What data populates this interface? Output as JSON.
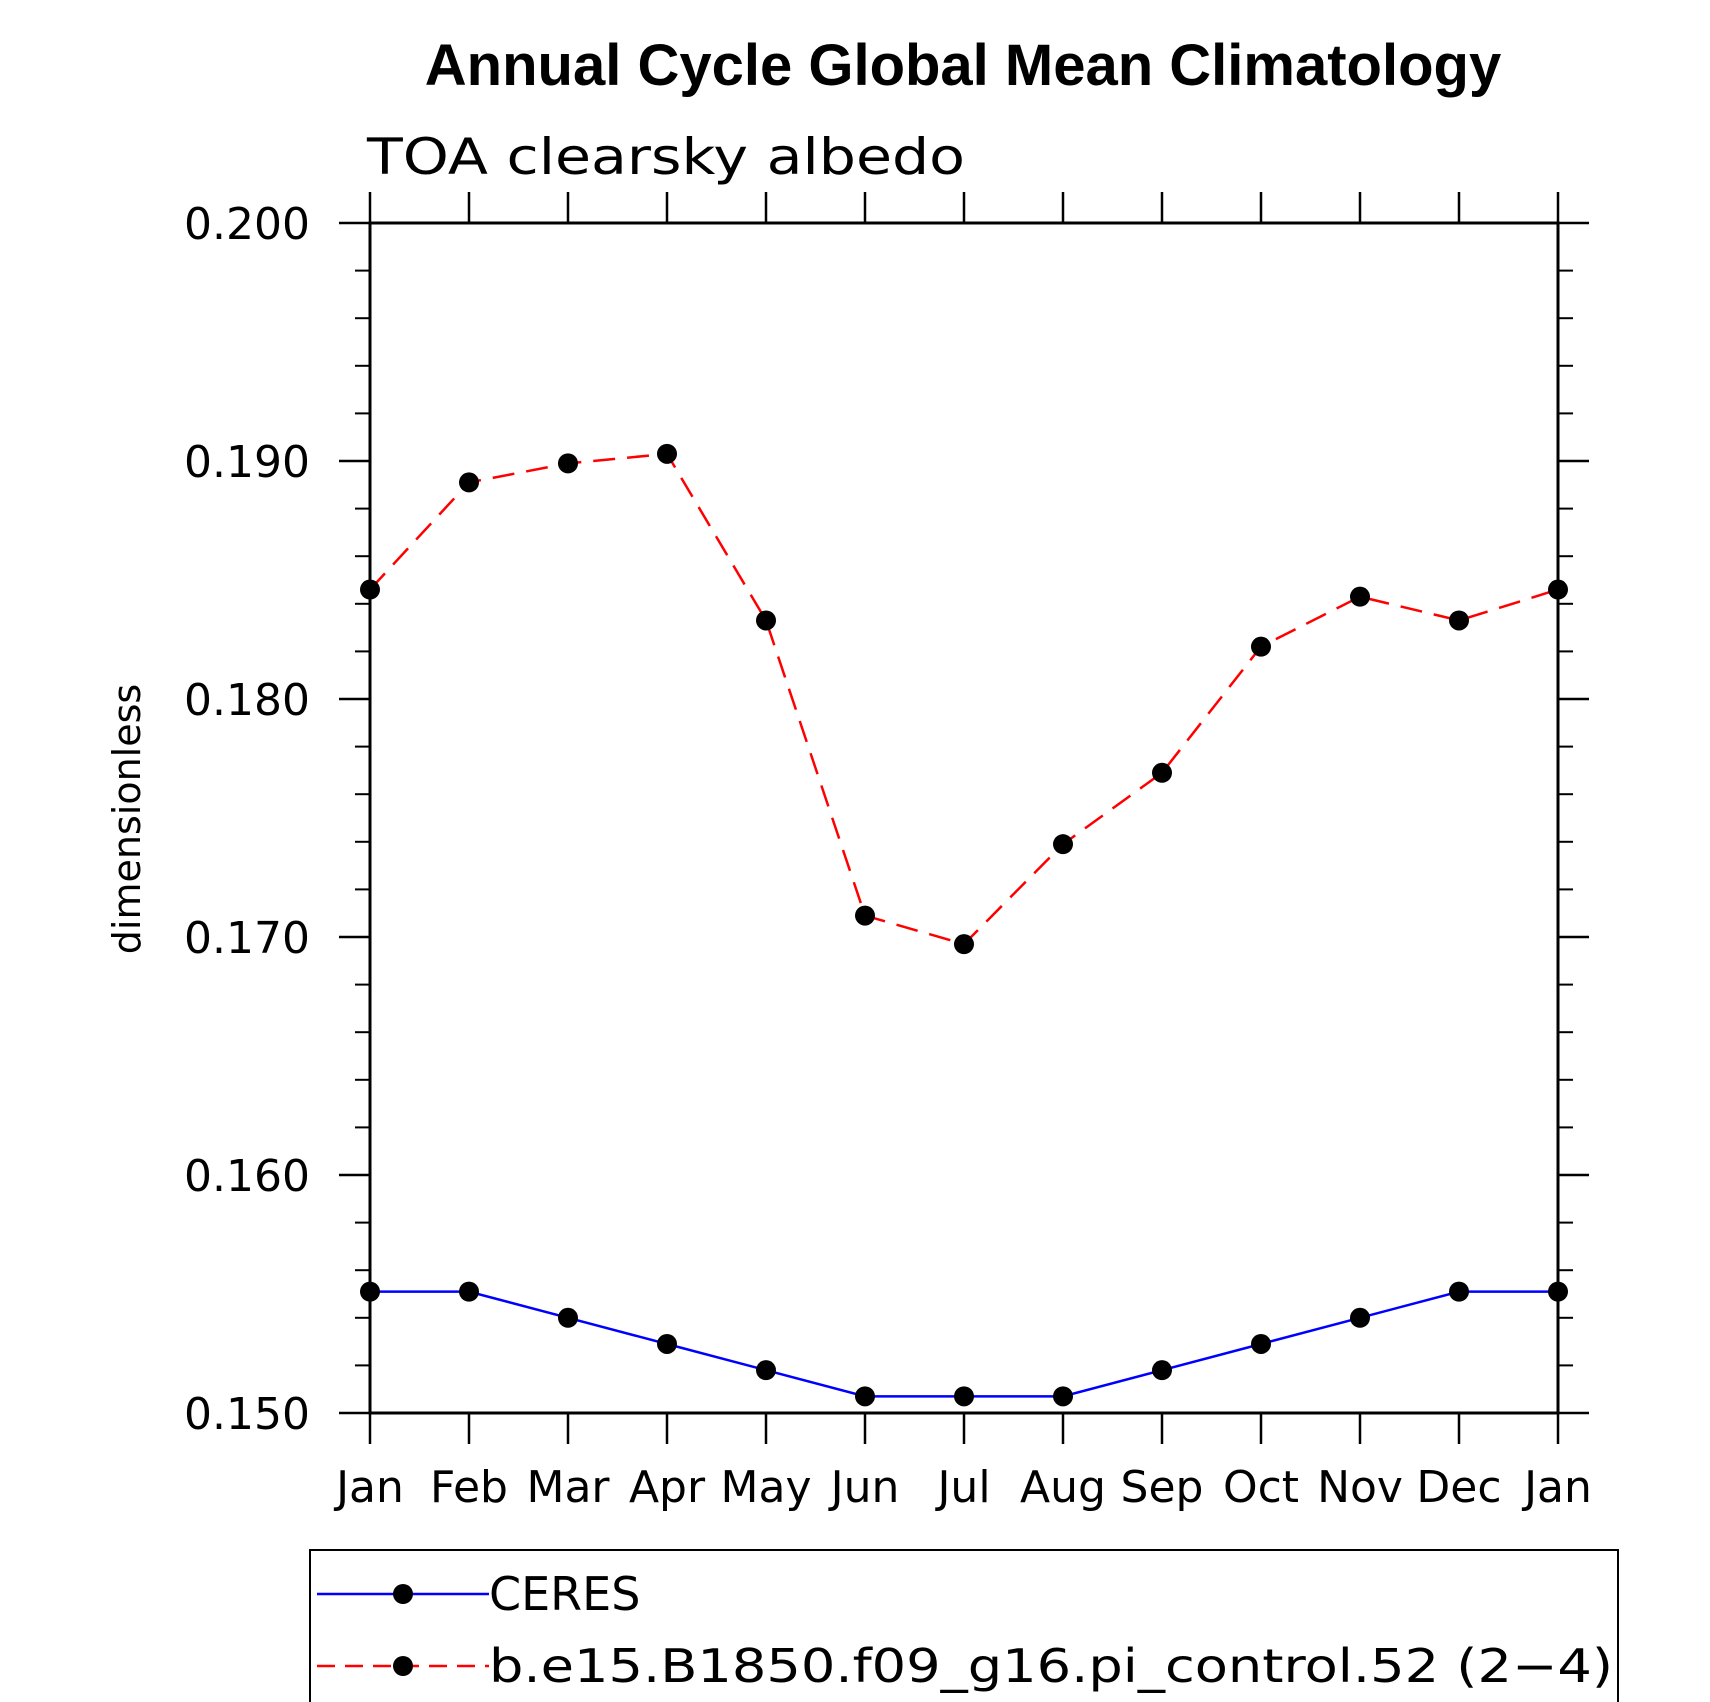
{
  "chart_data": {
    "type": "line",
    "title": "Annual Cycle Global Mean Climatology",
    "subtitle": "TOA clearsky albedo",
    "xlabel": "",
    "ylabel": "dimensionless",
    "categories": [
      "Jan",
      "Feb",
      "Mar",
      "Apr",
      "May",
      "Jun",
      "Jul",
      "Aug",
      "Sep",
      "Oct",
      "Nov",
      "Dec",
      "Jan"
    ],
    "ylim": [
      0.15,
      0.2
    ],
    "yticks": [
      0.15,
      0.16,
      0.17,
      0.18,
      0.19,
      0.2
    ],
    "ytick_labels": [
      "0.150",
      "0.160",
      "0.170",
      "0.180",
      "0.190",
      "0.200"
    ],
    "yminor_step": 0.002,
    "grid": false,
    "legend_position": "bottom",
    "series": [
      {
        "name": "CERES",
        "color": "#0000ff",
        "style": "solid",
        "marker": "circle",
        "values": [
          0.1551,
          0.1551,
          0.154,
          0.1529,
          0.1518,
          0.1507,
          0.1507,
          0.1507,
          0.1518,
          0.1529,
          0.154,
          0.1551,
          0.1551
        ]
      },
      {
        "name": "b.e15.B1850.f09_g16.pi_control.52 (2−4)",
        "color": "#ff0000",
        "style": "dashed",
        "marker": "circle",
        "values": [
          0.1846,
          0.1891,
          0.1899,
          0.1903,
          0.1833,
          0.1709,
          0.1697,
          0.1739,
          0.1769,
          0.1822,
          0.1843,
          0.1833,
          0.1846
        ]
      }
    ]
  }
}
